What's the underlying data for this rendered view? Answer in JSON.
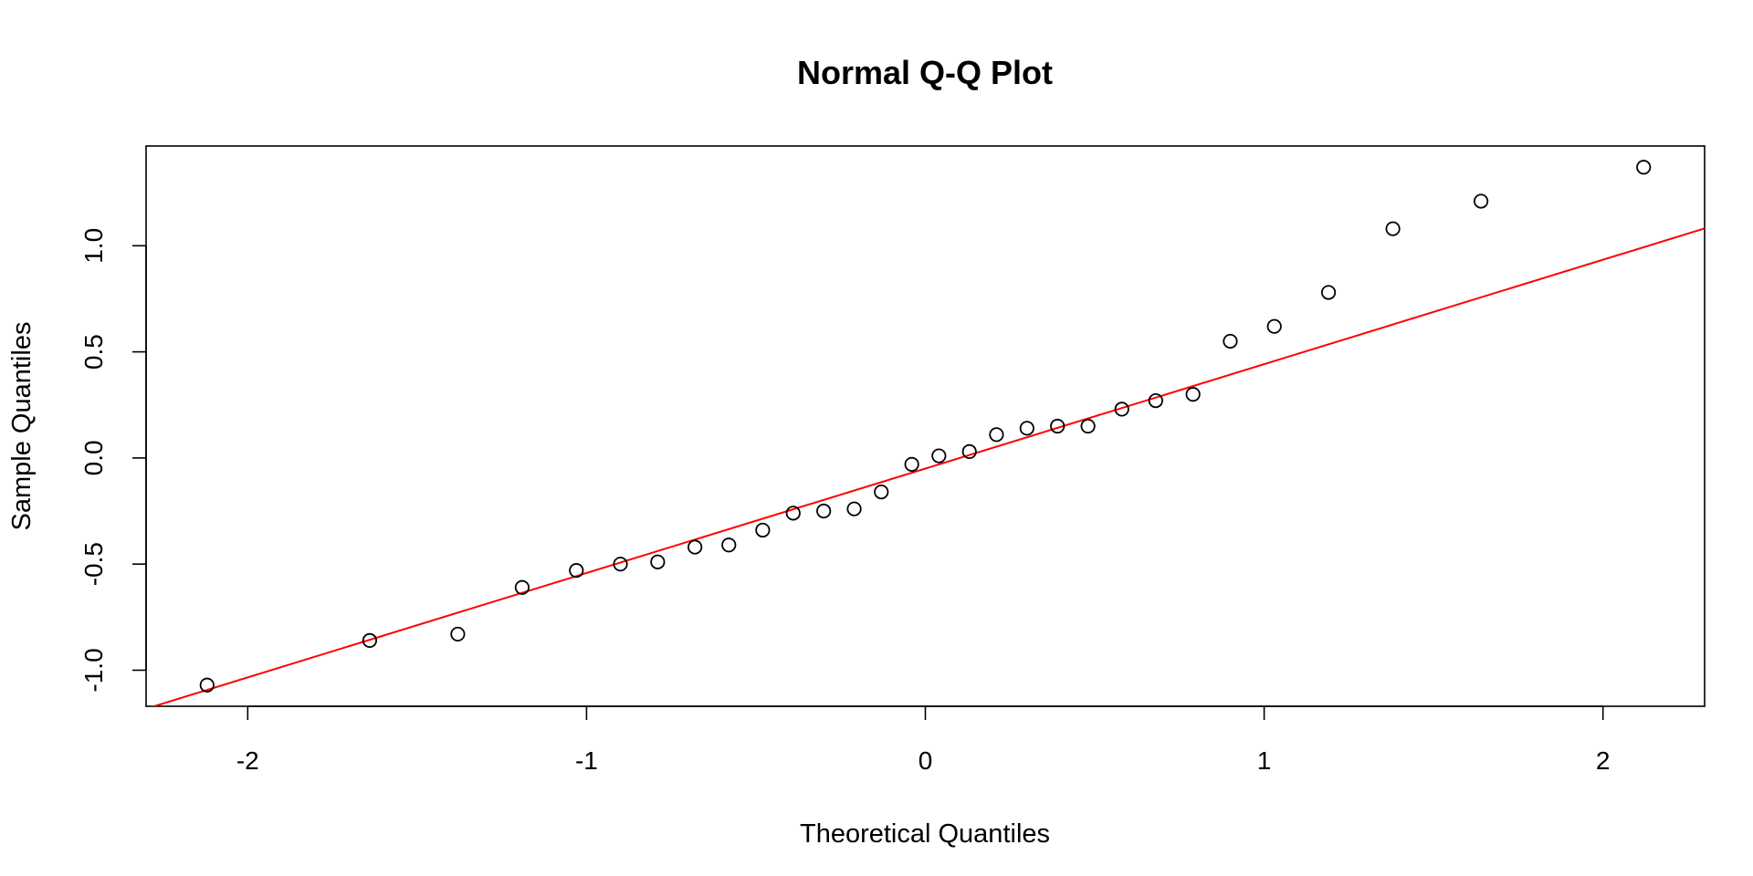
{
  "chart_data": {
    "type": "scatter",
    "title": "Normal Q-Q Plot",
    "xlabel": "Theoretical Quantiles",
    "ylabel": "Sample Quantiles",
    "xlim": [
      -2.3,
      2.3
    ],
    "ylim": [
      -1.17,
      1.47
    ],
    "x_ticks": [
      -2,
      -1,
      0,
      1,
      2
    ],
    "x_tick_labels": [
      "-2",
      "-1",
      "0",
      "1",
      "2"
    ],
    "y_ticks": [
      -1.0,
      -0.5,
      0.0,
      0.5,
      1.0
    ],
    "y_tick_labels": [
      "-1.0",
      "-0.5",
      "0.0",
      "0.5",
      "1.0"
    ],
    "grid": false,
    "legend": "none",
    "points": {
      "x": [
        -2.12,
        -1.64,
        -1.38,
        -1.19,
        -1.03,
        -0.9,
        -0.79,
        -0.68,
        -0.58,
        -0.48,
        -0.39,
        -0.3,
        -0.21,
        -0.13,
        -0.04,
        0.04,
        0.13,
        0.21,
        0.3,
        0.39,
        0.48,
        0.58,
        0.68,
        0.79,
        0.9,
        1.03,
        1.19,
        1.38,
        1.64,
        2.12
      ],
      "y": [
        -1.07,
        -0.86,
        -0.83,
        -0.61,
        -0.53,
        -0.5,
        -0.49,
        -0.42,
        -0.41,
        -0.34,
        -0.26,
        -0.25,
        -0.24,
        -0.16,
        -0.03,
        0.01,
        0.03,
        0.11,
        0.14,
        0.15,
        0.15,
        0.23,
        0.27,
        0.3,
        0.55,
        0.62,
        0.78,
        1.08,
        1.21,
        1.37
      ],
      "color": "#000000"
    },
    "reference_line": {
      "intercept": -0.05,
      "slope": 0.492,
      "color": "#ff0000"
    }
  }
}
